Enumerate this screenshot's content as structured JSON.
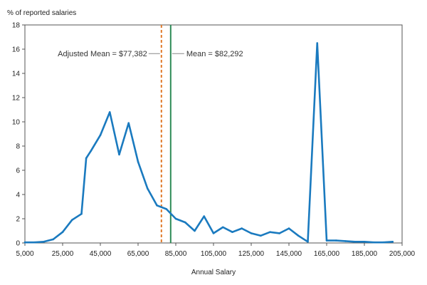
{
  "chart_data": {
    "type": "line",
    "title": "",
    "ylabel": "% of reported salaries",
    "xlabel": "Annual Salary",
    "xlim": [
      5000,
      205000
    ],
    "ylim": [
      0,
      18
    ],
    "x_ticks": [
      5000,
      25000,
      45000,
      65000,
      85000,
      105000,
      125000,
      145000,
      165000,
      185000,
      205000
    ],
    "x_tick_labels": [
      "5,000",
      "25,000",
      "45,000",
      "65,000",
      "85,000",
      "105,000",
      "125,000",
      "145,000",
      "165,000",
      "185,000",
      "205,000"
    ],
    "y_ticks": [
      0,
      2,
      4,
      6,
      8,
      10,
      12,
      14,
      16,
      18
    ],
    "y_tick_labels": [
      "0",
      "2",
      "4",
      "6",
      "8",
      "10",
      "12",
      "14",
      "16",
      "18"
    ],
    "grid": false,
    "series": [
      {
        "color": "#1a7abf",
        "x": [
          5000,
          10000,
          15000,
          20000,
          25000,
          30000,
          35000,
          37500,
          40000,
          45000,
          50000,
          55000,
          60000,
          65000,
          70000,
          75000,
          80000,
          85000,
          90000,
          95000,
          100000,
          105000,
          110000,
          115000,
          120000,
          125000,
          130000,
          135000,
          140000,
          145000,
          150000,
          155000,
          160000,
          165000,
          170000,
          175000,
          180000,
          185000,
          190000,
          195000,
          200000
        ],
        "y": [
          0.05,
          0.05,
          0.1,
          0.3,
          0.9,
          1.9,
          2.4,
          7.0,
          7.6,
          8.9,
          10.8,
          7.3,
          9.9,
          6.7,
          4.5,
          3.1,
          2.8,
          2.0,
          1.7,
          1.0,
          2.2,
          0.8,
          1.3,
          0.9,
          1.2,
          0.8,
          0.6,
          0.9,
          0.8,
          1.2,
          0.6,
          0.1,
          16.5,
          0.2,
          0.2,
          0.15,
          0.1,
          0.1,
          0.05,
          0.05,
          0.1
        ]
      }
    ],
    "annotations": [
      {
        "label": "Adjusted Mean = $77,382",
        "x": 77382,
        "style": "dashed",
        "color": "#e07a2a",
        "label_side": "left"
      },
      {
        "label": "Mean = $82,292",
        "x": 82292,
        "style": "solid",
        "color": "#2e8b57",
        "label_side": "right"
      }
    ]
  }
}
